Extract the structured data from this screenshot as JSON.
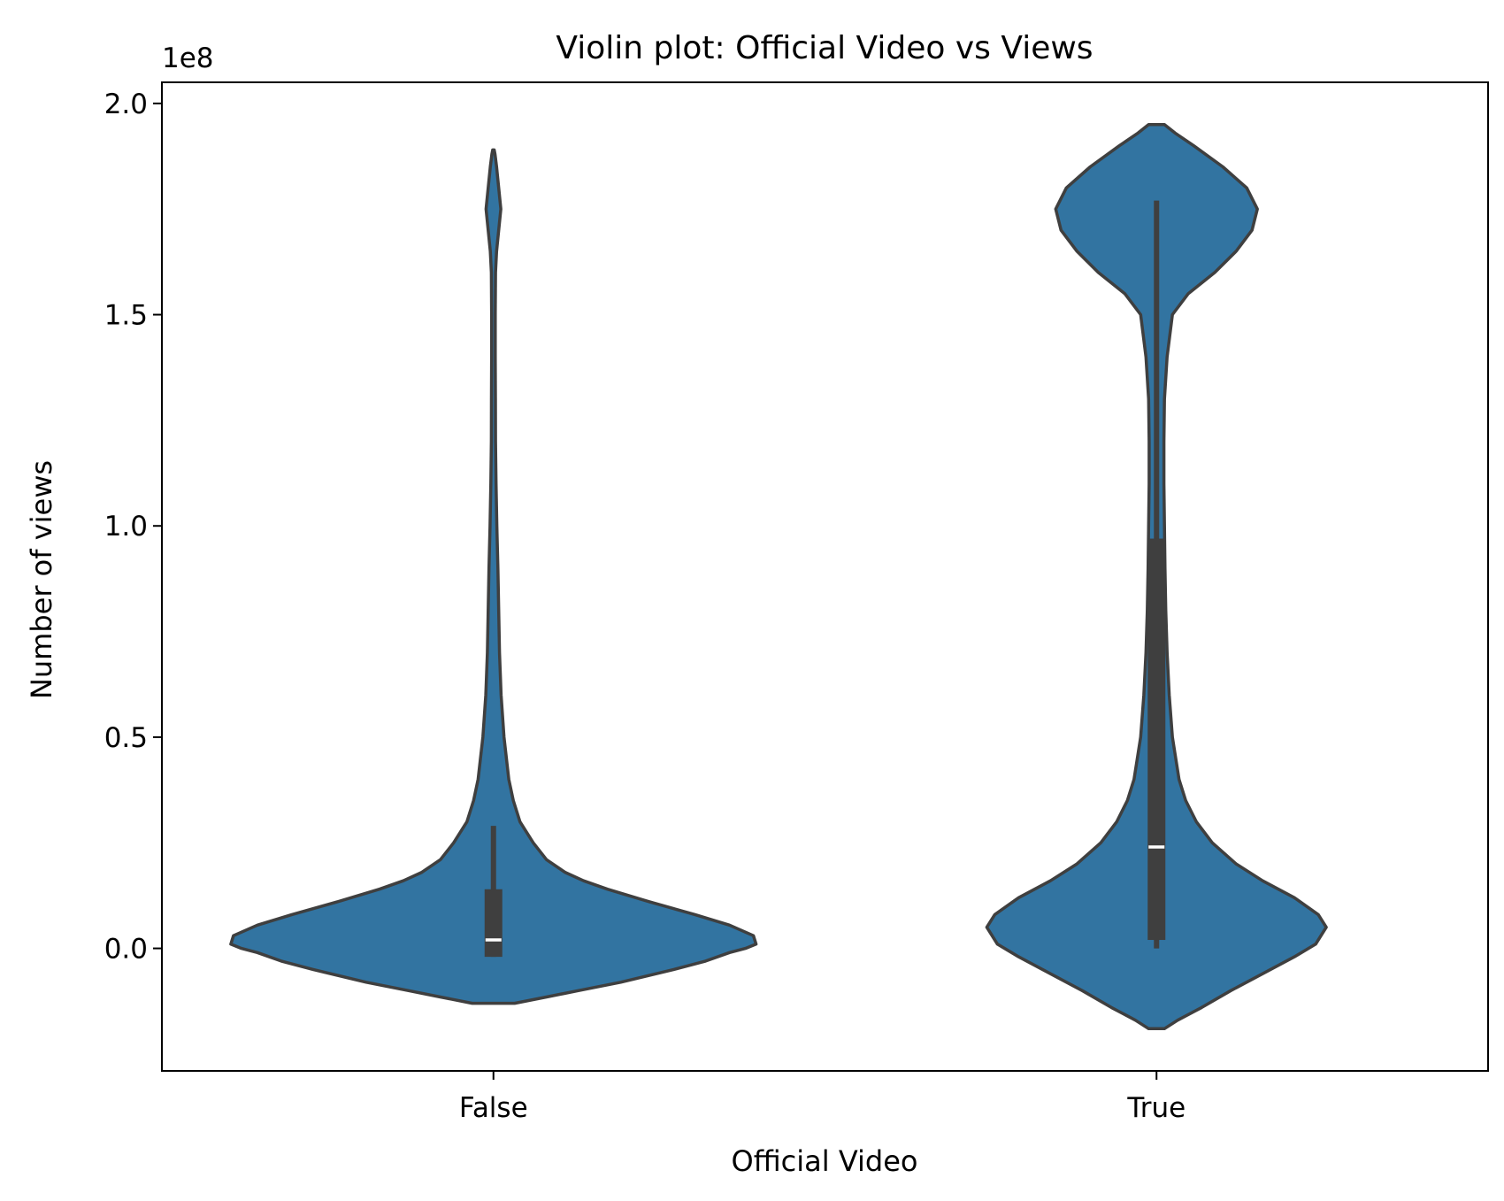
{
  "chart_data": {
    "type": "violin",
    "title": "Violin plot: Official Video vs Views",
    "xlabel": "Official Video",
    "ylabel": "Number of views",
    "y_offset_label": "1e8",
    "y_scale": 100000000,
    "ylim": [
      -0.29,
      2.05
    ],
    "yticks": [
      0.0,
      0.5,
      1.0,
      1.5,
      2.0
    ],
    "ytick_labels": [
      "0.0",
      "0.5",
      "1.0",
      "1.5",
      "2.0"
    ],
    "categories": [
      "False",
      "True"
    ],
    "grid": false,
    "colors": {
      "fill": "#3274a1",
      "outline": "#3f3f3f",
      "box": "#3f3f3f",
      "median": "#ffffff"
    },
    "series": [
      {
        "category": "False",
        "violin": {
          "y_min": -0.13,
          "y_max": 1.89,
          "profile": [
            [
              -0.13,
              0.08
            ],
            [
              -0.115,
              0.2
            ],
            [
              -0.1,
              0.32
            ],
            [
              -0.08,
              0.48
            ],
            [
              -0.05,
              0.68
            ],
            [
              -0.03,
              0.8
            ],
            [
              -0.01,
              0.89
            ],
            [
              0.0,
              0.95
            ],
            [
              0.01,
              0.99
            ],
            [
              0.03,
              0.98
            ],
            [
              0.055,
              0.89
            ],
            [
              0.08,
              0.76
            ],
            [
              0.11,
              0.59
            ],
            [
              0.14,
              0.43
            ],
            [
              0.16,
              0.34
            ],
            [
              0.18,
              0.27
            ],
            [
              0.21,
              0.2
            ],
            [
              0.25,
              0.15
            ],
            [
              0.3,
              0.1
            ],
            [
              0.35,
              0.075
            ],
            [
              0.4,
              0.058
            ],
            [
              0.5,
              0.04
            ],
            [
              0.6,
              0.029
            ],
            [
              0.7,
              0.023
            ],
            [
              0.8,
              0.02
            ],
            [
              0.9,
              0.017
            ],
            [
              1.0,
              0.013
            ],
            [
              1.1,
              0.01
            ],
            [
              1.2,
              0.008
            ],
            [
              1.3,
              0.0075
            ],
            [
              1.4,
              0.007
            ],
            [
              1.5,
              0.007
            ],
            [
              1.6,
              0.008
            ],
            [
              1.65,
              0.012
            ],
            [
              1.7,
              0.02
            ],
            [
              1.75,
              0.028
            ],
            [
              1.8,
              0.02
            ],
            [
              1.85,
              0.012
            ],
            [
              1.88,
              0.006
            ],
            [
              1.89,
              0.003
            ]
          ]
        },
        "box": {
          "q1": -0.02,
          "median": 0.02,
          "q3": 0.14,
          "whisker_low": -0.02,
          "whisker_high": 0.29
        }
      },
      {
        "category": "True",
        "violin": {
          "y_min": -0.19,
          "y_max": 1.95,
          "profile": [
            [
              -0.19,
              0.03
            ],
            [
              -0.17,
              0.08
            ],
            [
              -0.14,
              0.17
            ],
            [
              -0.1,
              0.28
            ],
            [
              -0.06,
              0.4
            ],
            [
              -0.02,
              0.52
            ],
            [
              0.01,
              0.6
            ],
            [
              0.05,
              0.64
            ],
            [
              0.08,
              0.61
            ],
            [
              0.12,
              0.52
            ],
            [
              0.16,
              0.4
            ],
            [
              0.2,
              0.3
            ],
            [
              0.25,
              0.21
            ],
            [
              0.3,
              0.15
            ],
            [
              0.35,
              0.11
            ],
            [
              0.4,
              0.085
            ],
            [
              0.5,
              0.06
            ],
            [
              0.6,
              0.048
            ],
            [
              0.7,
              0.04
            ],
            [
              0.8,
              0.035
            ],
            [
              0.9,
              0.032
            ],
            [
              1.0,
              0.03
            ],
            [
              1.1,
              0.028
            ],
            [
              1.2,
              0.028
            ],
            [
              1.3,
              0.03
            ],
            [
              1.4,
              0.04
            ],
            [
              1.5,
              0.06
            ],
            [
              1.55,
              0.12
            ],
            [
              1.6,
              0.22
            ],
            [
              1.65,
              0.3
            ],
            [
              1.7,
              0.36
            ],
            [
              1.75,
              0.38
            ],
            [
              1.8,
              0.34
            ],
            [
              1.85,
              0.25
            ],
            [
              1.9,
              0.14
            ],
            [
              1.93,
              0.07
            ],
            [
              1.95,
              0.03
            ]
          ]
        },
        "box": {
          "q1": 0.02,
          "median": 0.24,
          "q3": 0.97,
          "whisker_low": 0.0,
          "whisker_high": 1.77
        }
      }
    ]
  }
}
